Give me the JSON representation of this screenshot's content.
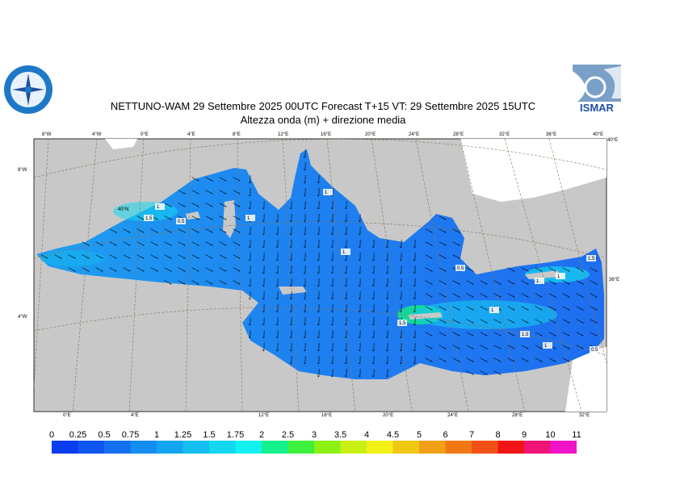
{
  "header": {
    "line1": "NETTUNO-WAM  29 Settembre 2025 00UTC Forecast T+15 VT: 29 Settembre 2025 15UTC",
    "line2": "Altezza onda (m) + direzione media"
  },
  "logos": {
    "left_icon": "compass-rose-seal",
    "right_text": "ISMAR"
  },
  "map": {
    "top_lon_labels": [
      "8°W",
      "4°W",
      "0°E",
      "4°E",
      "8°E",
      "12°E",
      "16°E",
      "20°E",
      "24°E",
      "28°E",
      "32°E",
      "36°E",
      "40°E"
    ],
    "bottom_lon_labels": [
      "0°E",
      "4°E",
      "12°E",
      "16°E",
      "20°E",
      "24°E",
      "28°E",
      "32°E"
    ],
    "left_lat_labels": [
      "8°W",
      "4°W"
    ],
    "right_labels": [
      "40°E",
      "36°E"
    ],
    "inner_label": "40°N",
    "contour_labels": [
      "1",
      "1.5",
      "0.5",
      "1",
      "1",
      "1",
      "0.5",
      "1",
      "1.5",
      "1",
      "1",
      "1.5",
      "1",
      "0.5",
      "1.5"
    ],
    "colors": {
      "land": "#c8c8c8",
      "sea_low": "#1e64f0",
      "graticule": "#8b7355"
    }
  },
  "colorbar": {
    "labels": [
      "0",
      "0.25",
      "0.5",
      "0.75",
      "1",
      "1.25",
      "1.5",
      "1.75",
      "2",
      "2.5",
      "3",
      "3.5",
      "4",
      "4.5",
      "5",
      "6",
      "7",
      "8",
      "9",
      "10",
      "11"
    ],
    "colors": [
      "#0a3cf0",
      "#0f55f0",
      "#1470f0",
      "#148cf0",
      "#14a5f0",
      "#14bef0",
      "#14d7f0",
      "#14f0f0",
      "#14f08c",
      "#3cf03c",
      "#8cf014",
      "#c8f014",
      "#f0f014",
      "#f0c814",
      "#f0a014",
      "#f07814",
      "#f05014",
      "#f01414",
      "#f01478",
      "#f014c8"
    ]
  }
}
